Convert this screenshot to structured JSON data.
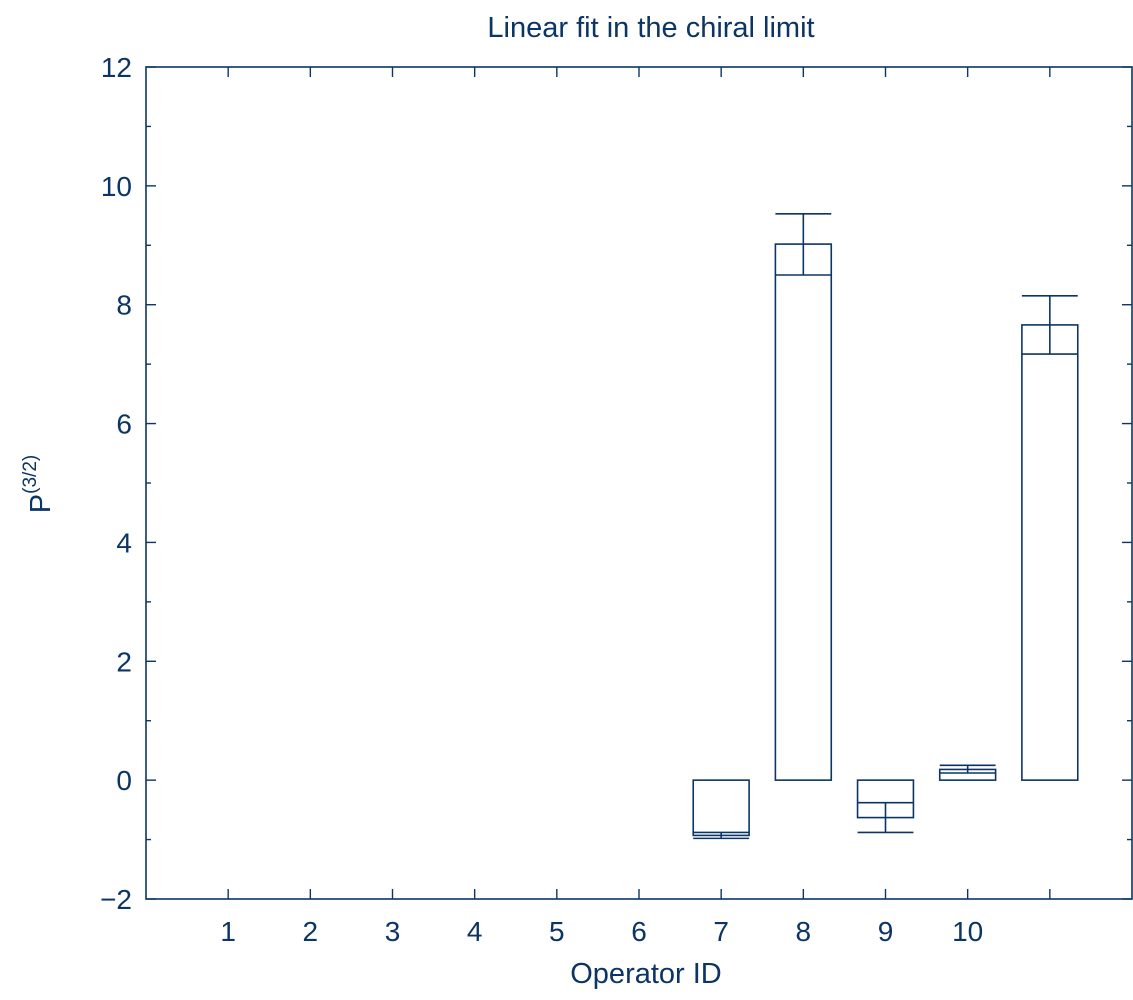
{
  "chart_data": {
    "type": "bar",
    "title": "Linear fit in the chiral limit",
    "xlabel": "Operator ID",
    "ylabel": {
      "base": "P",
      "superscript": "(3/2)"
    },
    "x_tick_labels": [
      "1",
      "2",
      "3",
      "4",
      "5",
      "6",
      "7",
      "8",
      "9",
      "10"
    ],
    "y_tick_labels": [
      "−2",
      "0",
      "2",
      "4",
      "6",
      "8",
      "10",
      "12"
    ],
    "xlim": [
      0,
      12
    ],
    "ylim": [
      -2,
      12
    ],
    "grid": false,
    "legend": false,
    "bars": [
      {
        "x": 7,
        "value": -0.93,
        "err_low": -0.98,
        "err_high": -0.88
      },
      {
        "x": 8,
        "value": 9.02,
        "err_low": 8.5,
        "err_high": 9.53
      },
      {
        "x": 9,
        "value": -0.63,
        "err_low": -0.88,
        "err_high": -0.38
      },
      {
        "x": 10,
        "value": 0.18,
        "err_low": 0.12,
        "err_high": 0.25
      },
      {
        "x": 11,
        "value": 7.66,
        "err_low": 7.17,
        "err_high": 8.15
      }
    ],
    "colors": {
      "ink": "#0b3565"
    }
  }
}
